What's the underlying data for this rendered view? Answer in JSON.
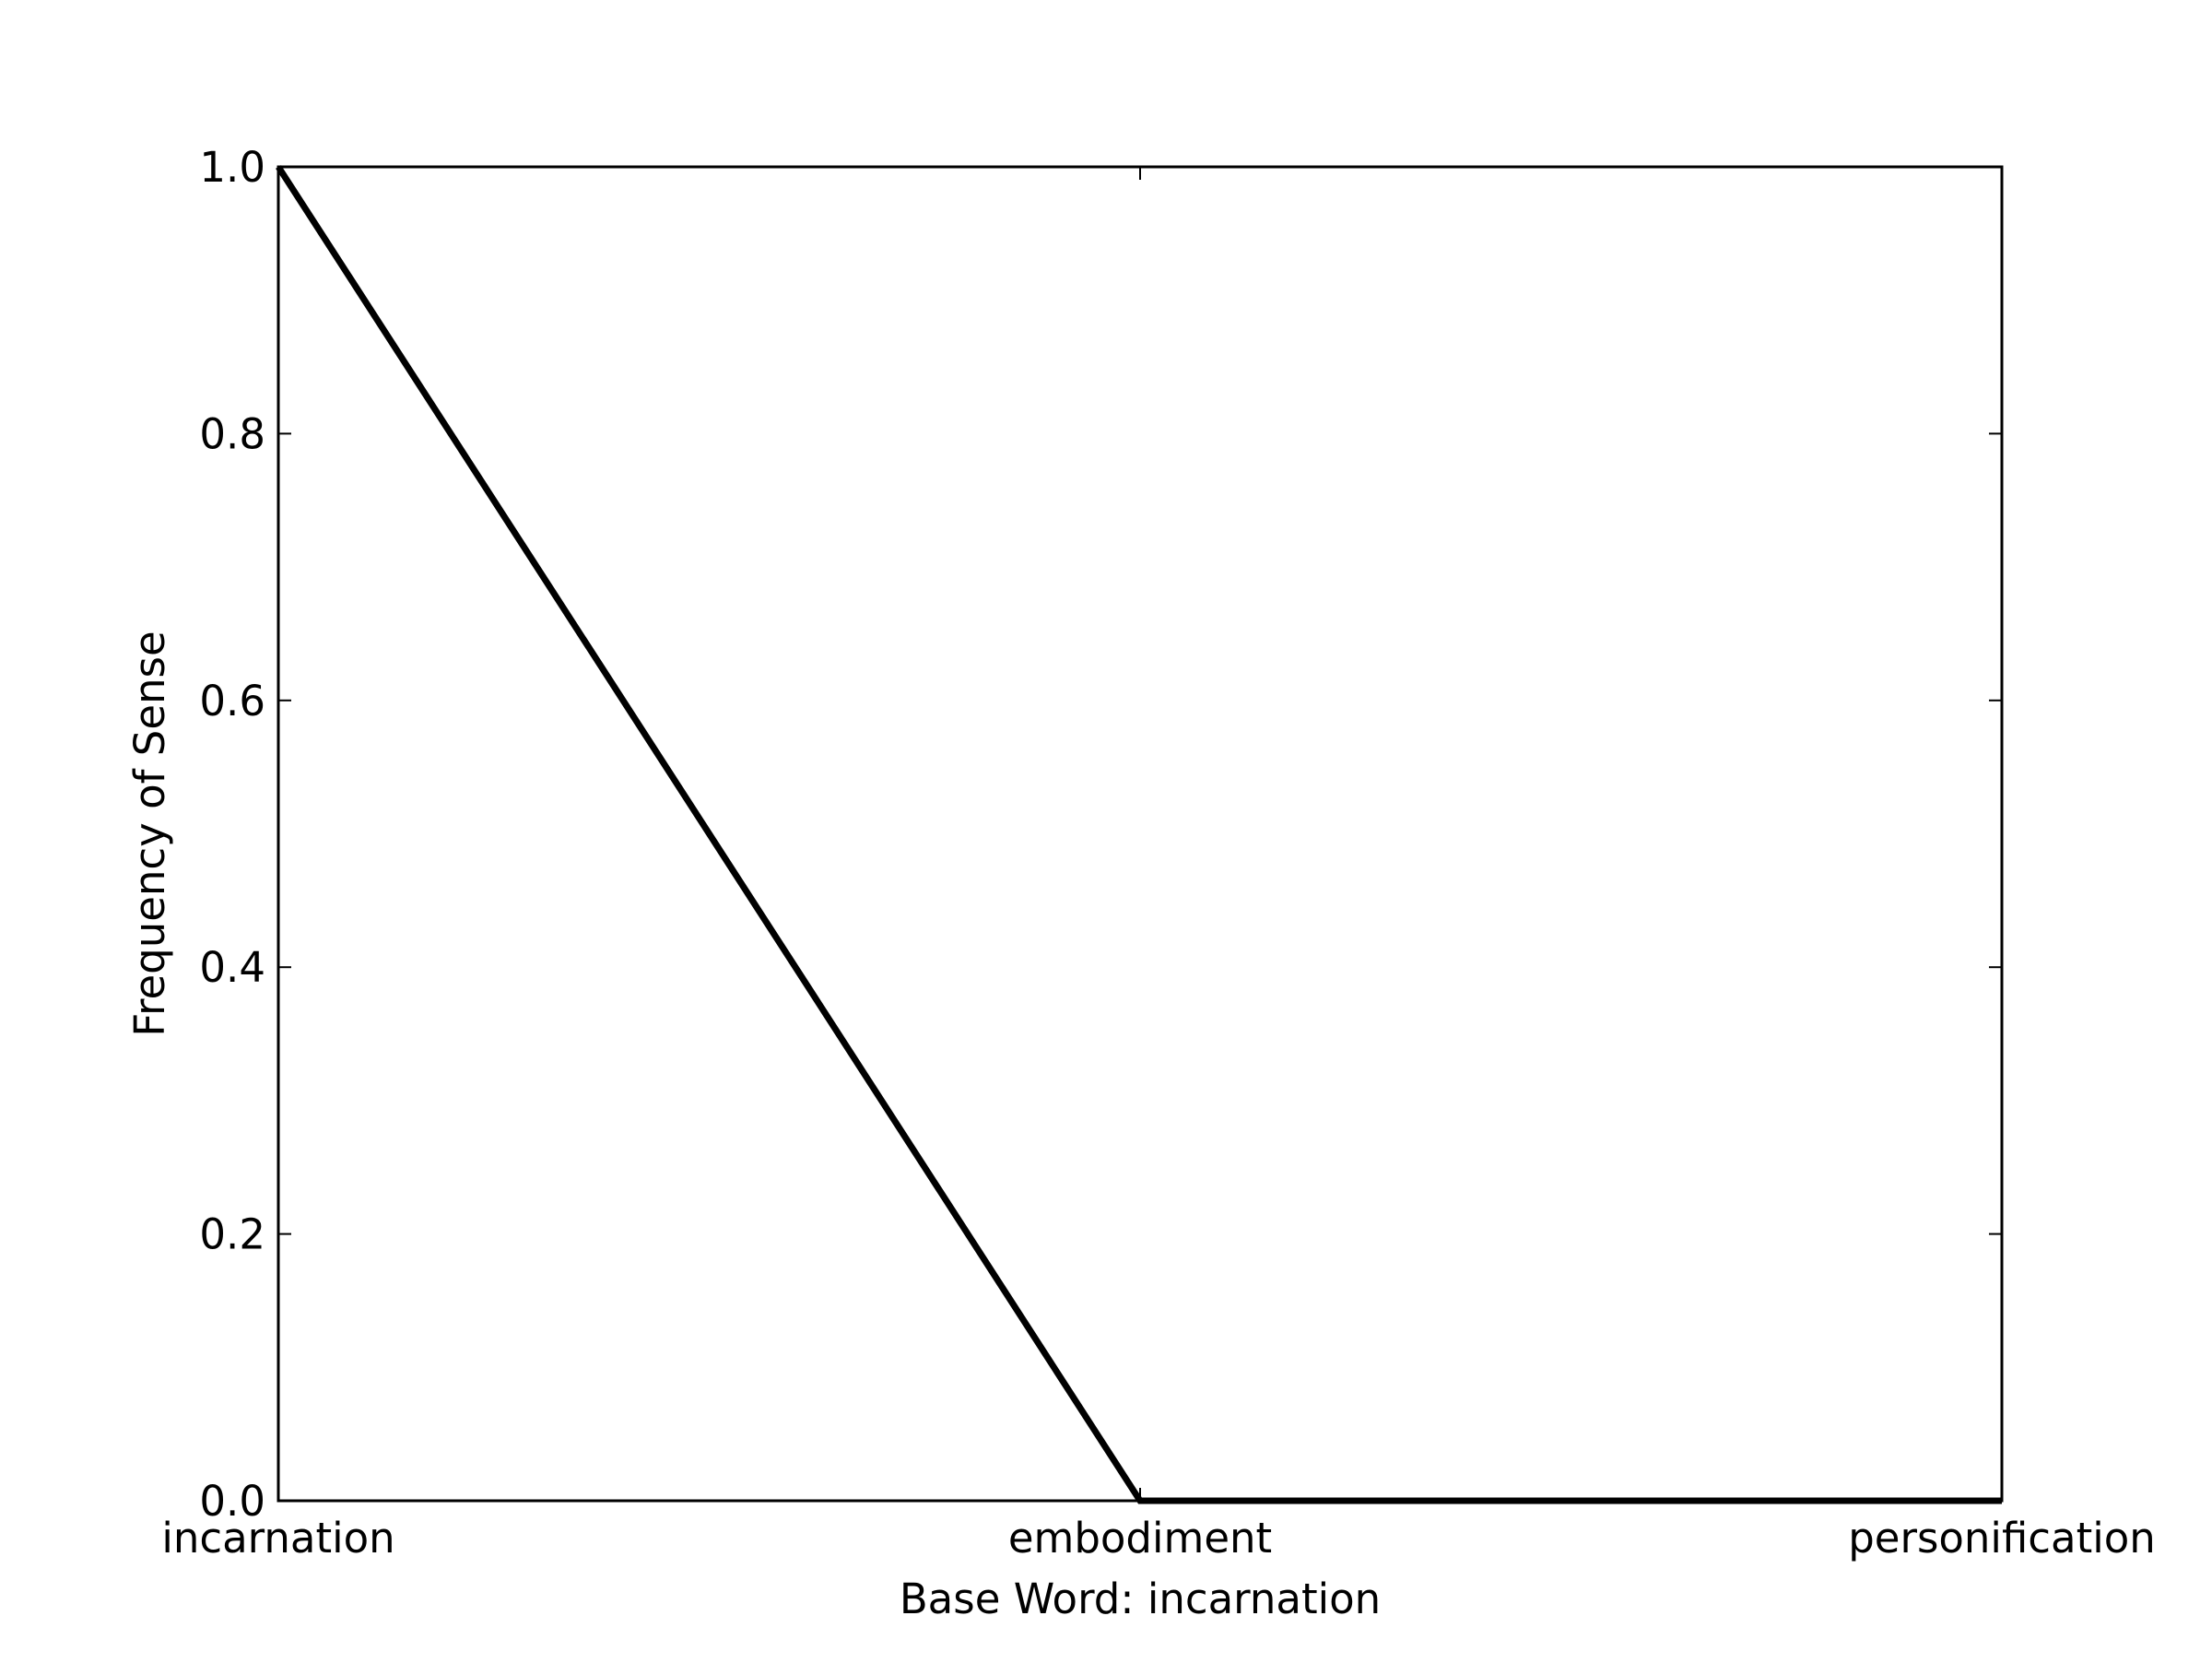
{
  "chart_data": {
    "type": "line",
    "title": "",
    "xlabel": "Base Word: incarnation",
    "ylabel": "Frequency of Sense",
    "categories": [
      "incarnation",
      "embodiment",
      "personification"
    ],
    "series": [
      {
        "values": [
          1.0,
          0.0,
          0.0
        ],
        "color": "#000000"
      }
    ],
    "ylim": [
      0.0,
      1.0
    ],
    "yticks": [
      0.0,
      0.2,
      0.4,
      0.6,
      0.8,
      1.0
    ],
    "ytick_labels": [
      "0.0",
      "0.2",
      "0.4",
      "0.6",
      "0.8",
      "1.0"
    ],
    "grid": false,
    "legend": "none"
  }
}
